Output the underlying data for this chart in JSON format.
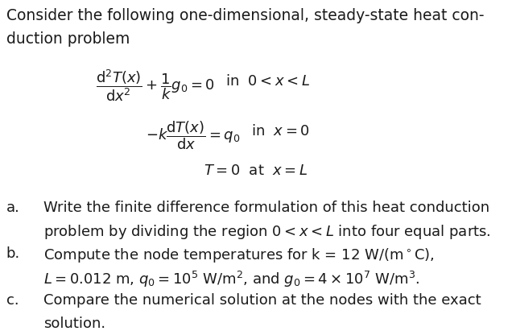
{
  "bg_color": "#ffffff",
  "text_color": "#1a1a1a",
  "figsize": [
    6.36,
    4.11
  ],
  "dpi": 100,
  "fs_title": 13.5,
  "fs_eq": 13.0,
  "fs_body": 13.0,
  "title_line1": "Consider the following one-dimensional, steady-state heat con-",
  "title_line2": "duction problem",
  "eq1_left": "$\\dfrac{\\mathrm{d}^2T(x)}{\\mathrm{d}x^2} + \\dfrac{1}{k}g_0 = 0$",
  "eq1_right": "in  $0 < x < L$",
  "eq2_left": "$-k\\dfrac{\\mathrm{d}T(x)}{\\mathrm{d}x} = q_0$",
  "eq2_right": "in  $x=0$",
  "eq3": "$T = 0$  at  $x=L$",
  "label_a": "a.",
  "text_a1": "Write the finite difference formulation of this heat conduction",
  "text_a2": "problem by dividing the region $0 < x < L$ into four equal parts.",
  "label_b": "b.",
  "text_b1": "Compute the node temperatures for k = 12 W/(m°C),",
  "text_b2": "$L = 0.012$ m, $q_0 = 10^5$ W/m$^2$, and $g_0 = 4 \\times 10^7$ W/m$^3$.",
  "label_c": "c.",
  "text_c1": "Compare the numerical solution at the nodes with the exact",
  "text_c2": "solution."
}
